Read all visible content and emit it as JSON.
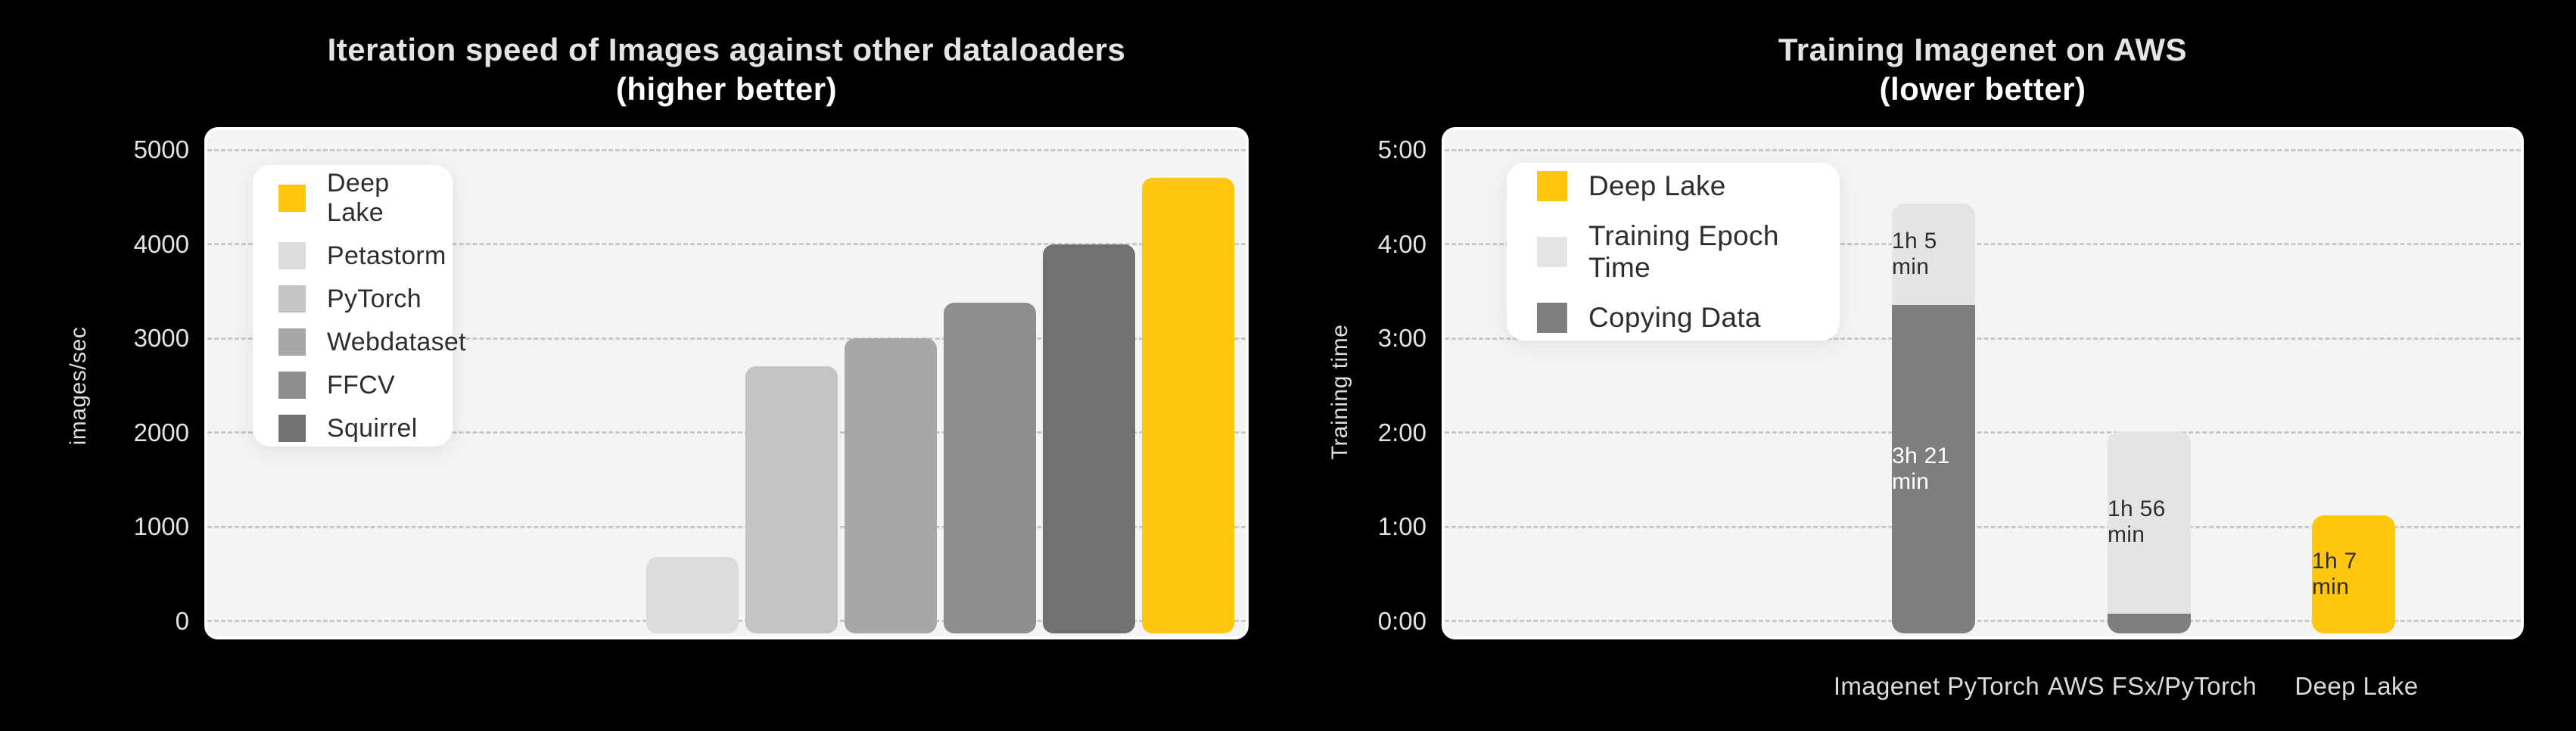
{
  "page": {
    "background": "#000000",
    "card_background": "#f4f4f4",
    "accent_yellow": "#FFC60B"
  },
  "chart_data": [
    {
      "type": "bar",
      "title": "Iteration speed of Images against other dataloaders",
      "subtitle": "(higher better)",
      "xlabel": "",
      "ylabel": "images/sec",
      "ylim": [
        0,
        5250
      ],
      "y_ticks": [
        "5000",
        "4000",
        "3000",
        "2000",
        "1000",
        "0"
      ],
      "grid": "horizontal-dashed",
      "legend_position": "top-left-inside",
      "categories": [
        "Petastorm",
        "PyTorch",
        "Webdataset",
        "FFCV",
        "Squirrel",
        "Deep Lake"
      ],
      "values": [
        675,
        2700,
        3000,
        3375,
        4000,
        4700
      ],
      "bar_colors": [
        "#DCDCDC",
        "#C4C4C4",
        "#A7A7A7",
        "#8E8E8E",
        "#717171",
        "#FFC60B"
      ],
      "legend": [
        {
          "label": "Deep Lake",
          "color": "#FFC60B"
        },
        {
          "label": "Petastorm",
          "color": "#DCDCDC"
        },
        {
          "label": "PyTorch",
          "color": "#C4C4C4"
        },
        {
          "label": "Webdataset",
          "color": "#A7A7A7"
        },
        {
          "label": "FFCV",
          "color": "#8E8E8E"
        },
        {
          "label": "Squirrel",
          "color": "#717171"
        }
      ]
    },
    {
      "type": "stacked-bar",
      "title": "Training Imagenet on AWS",
      "subtitle": "(lower better)",
      "xlabel": "",
      "ylabel": "Training time",
      "ylim_hours": [
        0,
        5.25
      ],
      "y_ticks": [
        "5:00",
        "4:00",
        "3:00",
        "2:00",
        "1:00",
        "0:00"
      ],
      "grid": "horizontal-dashed",
      "legend_position": "top-left-inside",
      "categories": [
        "Imagenet PyTorch",
        "AWS FSx/PyTorch",
        "Deep Lake"
      ],
      "bars": [
        {
          "category": "Imagenet PyTorch",
          "segments_bottom_up": [
            {
              "name": "Copying Data",
              "hours": 3.35,
              "label": "3h 21 min",
              "color": "#7E7E7E",
              "text_color": "#FFFFFF"
            },
            {
              "name": "Training Epoch Time",
              "hours": 1.083,
              "label": "1h 5 min",
              "color": "#E4E4E4",
              "text_color": "#2E2E2E"
            }
          ]
        },
        {
          "category": "AWS FSx/PyTorch",
          "segments_bottom_up": [
            {
              "name": "Copying Data",
              "hours": 0.08,
              "label": "",
              "color": "#7E7E7E",
              "text_color": "#FFFFFF"
            },
            {
              "name": "Training Epoch Time",
              "hours": 1.933,
              "label": "1h 56 min",
              "color": "#E4E4E4",
              "text_color": "#2E2E2E"
            }
          ]
        },
        {
          "category": "Deep Lake",
          "segments_bottom_up": [
            {
              "name": "Deep Lake",
              "hours": 1.117,
              "label": "1h 7 min",
              "color": "#FFC60B",
              "text_color": "#2E2E2E"
            }
          ]
        }
      ],
      "legend": [
        {
          "label": "Deep Lake",
          "color": "#FFC60B"
        },
        {
          "label": "Training Epoch Time",
          "color": "#E4E4E4"
        },
        {
          "label": "Copying Data",
          "color": "#7E7E7E"
        }
      ]
    }
  ]
}
